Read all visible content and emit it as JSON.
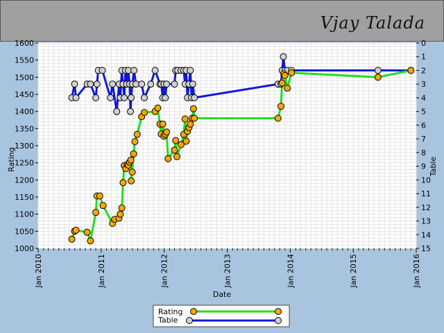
{
  "header": {
    "title": "Vjay Talada"
  },
  "legend": {
    "rating_label": "Rating",
    "table_label": "Table"
  },
  "colors": {
    "rating_line": "#22dd22",
    "rating_marker": "#f5a800",
    "table_line": "#1018dd",
    "table_marker": "#d0d0d0"
  },
  "chart_data": {
    "type": "line",
    "title": "",
    "xlabel": "Date",
    "ylabel": "Rating",
    "y2label": "Table",
    "xlim": [
      "2010-01-01",
      "2016-01-01"
    ],
    "ylim": [
      1000,
      1600
    ],
    "y2lim": [
      15,
      0
    ],
    "y2_inverted": true,
    "grid": true,
    "legend_position": "bottom-center",
    "x_ticks": [
      "Jan 2010",
      "Jan 2011",
      "Jan 2012",
      "Jan 2013",
      "Jan 2014",
      "Jan 2015",
      "Jan 2016"
    ],
    "y_ticks": [
      1000,
      1050,
      1100,
      1150,
      1200,
      1250,
      1300,
      1350,
      1400,
      1450,
      1500,
      1550,
      1600
    ],
    "y2_ticks": [
      0,
      1,
      2,
      3,
      4,
      5,
      6,
      7,
      8,
      9,
      10,
      11,
      12,
      13,
      14,
      15
    ],
    "series": [
      {
        "name": "Rating",
        "axis": "left",
        "points": [
          [
            "2010-07-15",
            1027
          ],
          [
            "2010-07-31",
            1050
          ],
          [
            "2010-08-08",
            1053
          ],
          [
            "2010-10-12",
            1047
          ],
          [
            "2010-10-31",
            1022
          ],
          [
            "2010-12-01",
            1105
          ],
          [
            "2010-12-08",
            1153
          ],
          [
            "2010-12-24",
            1153
          ],
          [
            "2011-01-12",
            1125
          ],
          [
            "2011-03-08",
            1073
          ],
          [
            "2011-03-20",
            1085
          ],
          [
            "2011-04-14",
            1088
          ],
          [
            "2011-04-22",
            1100
          ],
          [
            "2011-05-01",
            1118
          ],
          [
            "2011-05-08",
            1192
          ],
          [
            "2011-05-15",
            1242
          ],
          [
            "2011-05-24",
            1233
          ],
          [
            "2011-06-01",
            1245
          ],
          [
            "2011-06-08",
            1243
          ],
          [
            "2011-06-15",
            1252
          ],
          [
            "2011-06-22",
            1258
          ],
          [
            "2011-06-24",
            1197
          ],
          [
            "2011-06-30",
            1223
          ],
          [
            "2011-07-08",
            1276
          ],
          [
            "2011-07-16",
            1312
          ],
          [
            "2011-07-29",
            1333
          ],
          [
            "2011-08-24",
            1385
          ],
          [
            "2011-09-08",
            1397
          ],
          [
            "2011-11-10",
            1400
          ],
          [
            "2011-11-25",
            1410
          ],
          [
            "2011-12-08",
            1363
          ],
          [
            "2011-12-15",
            1334
          ],
          [
            "2011-12-24",
            1363
          ],
          [
            "2011-12-31",
            1328
          ],
          [
            "2012-01-08",
            1333
          ],
          [
            "2012-01-15",
            1340
          ],
          [
            "2012-01-24",
            1262
          ],
          [
            "2012-03-01",
            1287
          ],
          [
            "2012-03-08",
            1315
          ],
          [
            "2012-03-15",
            1268
          ],
          [
            "2012-04-08",
            1303
          ],
          [
            "2012-04-24",
            1333
          ],
          [
            "2012-05-01",
            1378
          ],
          [
            "2012-05-08",
            1313
          ],
          [
            "2012-05-15",
            1342
          ],
          [
            "2012-05-24",
            1353
          ],
          [
            "2012-06-01",
            1363
          ],
          [
            "2012-06-12",
            1380
          ],
          [
            "2012-06-19",
            1408
          ],
          [
            "2012-06-24",
            1380
          ],
          [
            "2013-10-22",
            1380
          ],
          [
            "2013-11-08",
            1415
          ],
          [
            "2013-11-15",
            1483
          ],
          [
            "2013-11-24",
            1510
          ],
          [
            "2013-12-01",
            1505
          ],
          [
            "2013-12-15",
            1468
          ],
          [
            "2014-01-08",
            1513
          ],
          [
            "2015-05-24",
            1500
          ],
          [
            "2015-12-01",
            1520
          ]
        ]
      },
      {
        "name": "Table",
        "axis": "right",
        "points": [
          [
            "2010-07-15",
            4
          ],
          [
            "2010-07-31",
            3
          ],
          [
            "2010-08-08",
            4
          ],
          [
            "2010-10-12",
            3
          ],
          [
            "2010-10-31",
            3
          ],
          [
            "2010-12-01",
            4
          ],
          [
            "2010-12-08",
            3
          ],
          [
            "2010-12-15",
            2
          ],
          [
            "2011-01-08",
            2
          ],
          [
            "2011-02-24",
            4
          ],
          [
            "2011-03-08",
            3
          ],
          [
            "2011-04-01",
            5
          ],
          [
            "2011-04-15",
            3
          ],
          [
            "2011-04-22",
            4
          ],
          [
            "2011-05-01",
            2
          ],
          [
            "2011-05-08",
            3
          ],
          [
            "2011-05-15",
            4
          ],
          [
            "2011-05-22",
            2
          ],
          [
            "2011-05-29",
            3
          ],
          [
            "2011-06-08",
            2
          ],
          [
            "2011-06-15",
            3
          ],
          [
            "2011-06-20",
            5
          ],
          [
            "2011-06-24",
            4
          ],
          [
            "2011-07-01",
            3
          ],
          [
            "2011-07-10",
            2
          ],
          [
            "2011-07-22",
            3
          ],
          [
            "2011-08-24",
            3
          ],
          [
            "2011-09-08",
            4
          ],
          [
            "2011-10-15",
            3
          ],
          [
            "2011-11-10",
            2
          ],
          [
            "2011-12-08",
            3
          ],
          [
            "2011-12-15",
            3
          ],
          [
            "2011-12-24",
            4
          ],
          [
            "2011-12-31",
            3
          ],
          [
            "2012-01-08",
            4
          ],
          [
            "2012-01-15",
            3
          ],
          [
            "2012-03-01",
            3
          ],
          [
            "2012-03-08",
            2
          ],
          [
            "2012-03-20",
            2
          ],
          [
            "2012-04-08",
            2
          ],
          [
            "2012-04-24",
            2
          ],
          [
            "2012-05-01",
            3
          ],
          [
            "2012-05-08",
            2
          ],
          [
            "2012-05-15",
            4
          ],
          [
            "2012-05-24",
            3
          ],
          [
            "2012-06-01",
            2
          ],
          [
            "2012-06-08",
            4
          ],
          [
            "2012-06-15",
            3
          ],
          [
            "2012-06-24",
            4
          ],
          [
            "2013-10-22",
            3
          ],
          [
            "2013-11-08",
            3
          ],
          [
            "2013-11-15",
            2
          ],
          [
            "2013-11-22",
            1
          ],
          [
            "2013-12-01",
            2
          ],
          [
            "2013-12-15",
            2
          ],
          [
            "2014-01-08",
            2
          ],
          [
            "2015-05-24",
            2
          ],
          [
            "2015-12-01",
            2
          ]
        ]
      }
    ]
  }
}
